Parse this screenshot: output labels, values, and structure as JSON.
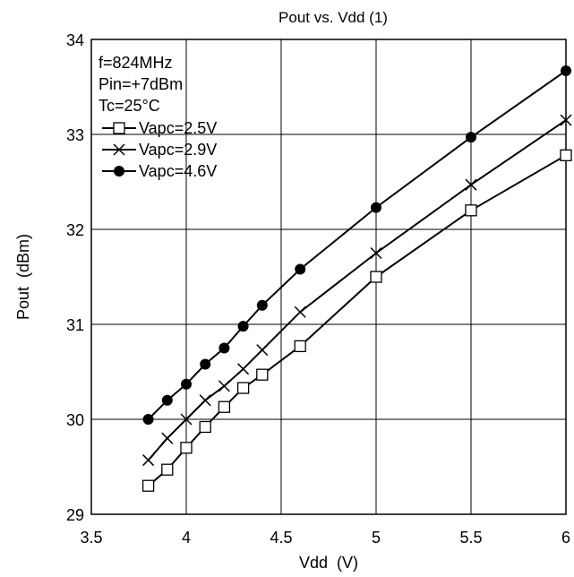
{
  "chart_data": {
    "type": "line",
    "title": "Pout vs. Vdd (1)",
    "xlabel": "Vdd  (V)",
    "ylabel": "Pout  (dBm)",
    "xlim": [
      3.5,
      6
    ],
    "ylim": [
      29,
      34
    ],
    "xticks": [
      3.5,
      4,
      4.5,
      5,
      5.5,
      6
    ],
    "xtick_labels": [
      "3.5",
      "4",
      "4.5",
      "5",
      "5.5",
      "6"
    ],
    "yticks": [
      29,
      30,
      31,
      32,
      33,
      34
    ],
    "ytick_labels": [
      "29",
      "30",
      "31",
      "32",
      "33",
      "34"
    ],
    "grid": true,
    "legend_position": "top-left",
    "conditions": [
      "f=824MHz",
      "Pin=+7dBm",
      "Tc=25°C"
    ],
    "series": [
      {
        "name": "Vapc=2.5V",
        "marker": "open-square",
        "x": [
          3.8,
          3.9,
          4.0,
          4.1,
          4.2,
          4.3,
          4.4,
          4.6,
          5.0,
          5.5,
          6.0
        ],
        "y": [
          29.3,
          29.47,
          29.7,
          29.92,
          30.13,
          30.33,
          30.47,
          30.77,
          31.5,
          32.2,
          32.78
        ]
      },
      {
        "name": "Vapc=2.9V",
        "marker": "x",
        "x": [
          3.8,
          3.9,
          4.0,
          4.1,
          4.2,
          4.3,
          4.4,
          4.6,
          5.0,
          5.5,
          6.0
        ],
        "y": [
          29.57,
          29.8,
          30.0,
          30.2,
          30.35,
          30.53,
          30.73,
          31.13,
          31.75,
          32.47,
          33.15
        ]
      },
      {
        "name": "Vapc=4.6V",
        "marker": "filled-circle",
        "x": [
          3.8,
          3.9,
          4.0,
          4.1,
          4.2,
          4.3,
          4.4,
          4.6,
          5.0,
          5.5,
          6.0
        ],
        "y": [
          30.0,
          30.2,
          30.37,
          30.58,
          30.75,
          30.98,
          31.2,
          31.58,
          32.23,
          32.97,
          33.67
        ]
      }
    ]
  }
}
